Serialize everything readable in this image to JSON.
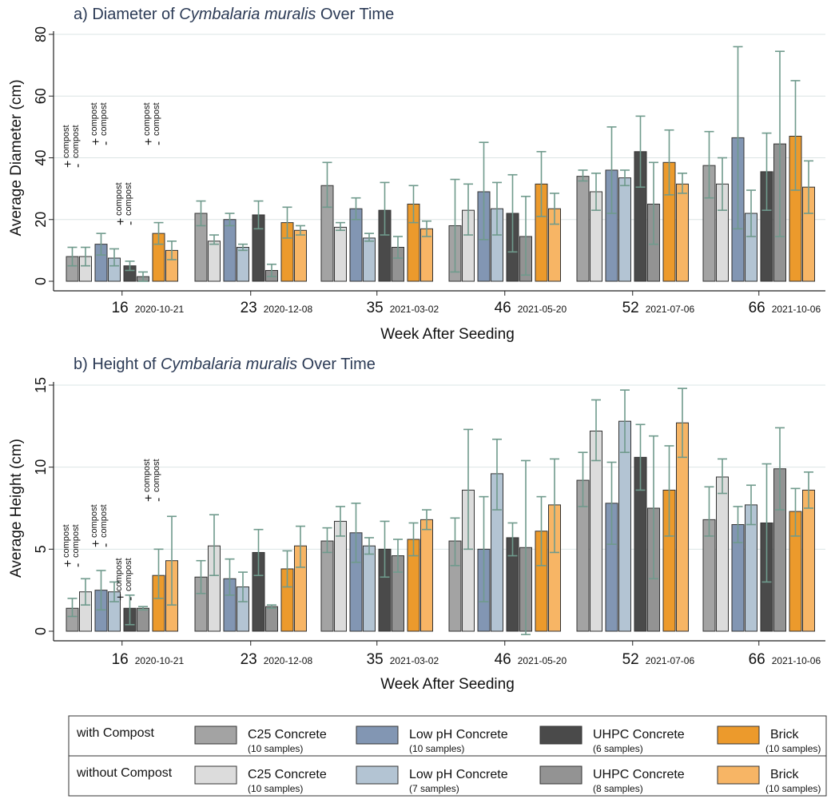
{
  "colors": {
    "c25_with": "#a3a3a3",
    "c25_without": "#dcdcdc",
    "lowph_with": "#8296b3",
    "lowph_without": "#b3c4d3",
    "uhpc_with": "#4a4a4a",
    "uhpc_without": "#939393",
    "brick_with": "#ec9a2c",
    "brick_without": "#f7b565",
    "errorbar": "#6f9a8c",
    "grid": "#dbe4e4"
  },
  "legend": {
    "rows": [
      {
        "label": "with Compost",
        "items": [
          {
            "key": "c25_with",
            "name": "C25 Concrete",
            "samples": "(10 samples)"
          },
          {
            "key": "lowph_with",
            "name": "Low pH Concrete",
            "samples": "(10 samples)"
          },
          {
            "key": "uhpc_with",
            "name": "UHPC Concrete",
            "samples": "(6 samples)"
          },
          {
            "key": "brick_with",
            "name": "Brick",
            "samples": "(10 samples)"
          }
        ]
      },
      {
        "label": "without Compost",
        "items": [
          {
            "key": "c25_without",
            "name": "C25 Concrete",
            "samples": "(10 samples)"
          },
          {
            "key": "lowph_without",
            "name": "Low pH Concrete",
            "samples": "(7 samples)"
          },
          {
            "key": "uhpc_without",
            "name": "UHPC Concrete",
            "samples": "(8 samples)"
          },
          {
            "key": "brick_without",
            "name": "Brick",
            "samples": "(10 samples)"
          }
        ]
      }
    ]
  },
  "annotation": {
    "plus_sign": "+",
    "minus_sign": "-",
    "compost_word": "compost"
  },
  "chart_data": [
    {
      "type": "bar",
      "title_prefix": "a) Diameter of ",
      "title_species": "Cymbalaria muralis",
      "title_suffix": " Over Time",
      "xlabel": "Week After Seeding",
      "ylabel": "Average Diameter (cm)",
      "ylim": [
        0,
        80
      ],
      "yticks": [
        0,
        20,
        40,
        60,
        80
      ],
      "grid": true,
      "categories": [
        {
          "week": "16",
          "date": "2020-10-21"
        },
        {
          "week": "23",
          "date": "2020-12-08"
        },
        {
          "week": "35",
          "date": "2021-03-02"
        },
        {
          "week": "46",
          "date": "2021-05-20"
        },
        {
          "week": "52",
          "date": "2021-07-06"
        },
        {
          "week": "66",
          "date": "2021-10-06"
        }
      ],
      "series": [
        {
          "key": "c25_with",
          "values": [
            8,
            22,
            31,
            18,
            34,
            37.5
          ],
          "err_low": [
            5,
            18,
            24,
            3,
            32.5,
            27
          ],
          "err_high": [
            11,
            26,
            38.5,
            33,
            36,
            48.5
          ]
        },
        {
          "key": "c25_without",
          "values": [
            8,
            13,
            17.5,
            23,
            29,
            31.5
          ],
          "err_low": [
            5,
            12,
            16.5,
            15,
            23,
            23
          ],
          "err_high": [
            11,
            15,
            19,
            31.5,
            35,
            40
          ]
        },
        {
          "key": "lowph_with",
          "values": [
            12,
            20,
            23.5,
            29,
            36,
            46.5
          ],
          "err_low": [
            8.5,
            18,
            20,
            13.5,
            22,
            17
          ],
          "err_high": [
            15.5,
            22,
            27,
            45,
            50,
            76
          ]
        },
        {
          "key": "lowph_without",
          "values": [
            7.5,
            11,
            14,
            23.5,
            33.5,
            22
          ],
          "err_low": [
            5,
            10,
            13,
            15,
            31,
            14.5
          ],
          "err_high": [
            10.5,
            12,
            15.5,
            32,
            36,
            29.5
          ]
        },
        {
          "key": "uhpc_with",
          "values": [
            5,
            21.5,
            23,
            22,
            42,
            35.5
          ],
          "err_low": [
            3.5,
            17,
            15,
            9.5,
            30.5,
            23
          ],
          "err_high": [
            6.5,
            26,
            32,
            34.5,
            53.5,
            48
          ]
        },
        {
          "key": "uhpc_without",
          "values": [
            1.5,
            3.5,
            11,
            14.5,
            25,
            44.5
          ],
          "err_low": [
            0,
            1.5,
            7.5,
            2,
            12,
            14.5
          ],
          "err_high": [
            3,
            5.5,
            14.5,
            27.5,
            38.5,
            74.5
          ]
        },
        {
          "key": "brick_with",
          "values": [
            15.5,
            19,
            25,
            31.5,
            38.5,
            47
          ],
          "err_low": [
            12,
            14,
            19,
            21,
            28,
            29.5
          ],
          "err_high": [
            19,
            24,
            31,
            42,
            49,
            65
          ]
        },
        {
          "key": "brick_without",
          "values": [
            10,
            16.5,
            17,
            23.5,
            31.5,
            30.5
          ],
          "err_low": [
            7,
            15,
            14.5,
            18.5,
            28.5,
            22
          ],
          "err_high": [
            13,
            18,
            19.5,
            28.5,
            35,
            39
          ]
        }
      ]
    },
    {
      "type": "bar",
      "title_prefix": "b) Height of ",
      "title_species": "Cymbalaria muralis",
      "title_suffix": " Over Time",
      "xlabel": "Week After Seeding",
      "ylabel": "Average Height (cm)",
      "ylim": [
        0,
        15
      ],
      "yticks": [
        0,
        5,
        10,
        15
      ],
      "grid": true,
      "categories": [
        {
          "week": "16",
          "date": "2020-10-21"
        },
        {
          "week": "23",
          "date": "2020-12-08"
        },
        {
          "week": "35",
          "date": "2021-03-02"
        },
        {
          "week": "46",
          "date": "2021-05-20"
        },
        {
          "week": "52",
          "date": "2021-07-06"
        },
        {
          "week": "66",
          "date": "2021-10-06"
        }
      ],
      "series": [
        {
          "key": "c25_with",
          "values": [
            1.4,
            3.3,
            5.5,
            5.5,
            9.2,
            6.8
          ],
          "err_low": [
            0.9,
            2.3,
            4.8,
            4.0,
            7.6,
            5.8
          ],
          "err_high": [
            2.0,
            4.3,
            6.3,
            6.9,
            10.9,
            8.8
          ]
        },
        {
          "key": "c25_without",
          "values": [
            2.4,
            5.2,
            6.7,
            8.6,
            12.2,
            9.4
          ],
          "err_low": [
            1.6,
            3.4,
            5.8,
            5.0,
            10.4,
            8.4
          ],
          "err_high": [
            3.2,
            7.1,
            7.6,
            12.3,
            14.1,
            10.5
          ]
        },
        {
          "key": "lowph_with",
          "values": [
            2.5,
            3.2,
            6.0,
            5.0,
            7.8,
            6.5
          ],
          "err_low": [
            1.3,
            2.2,
            4.2,
            1.8,
            5.3,
            5.4
          ],
          "err_high": [
            3.7,
            4.4,
            7.8,
            8.2,
            10.3,
            7.6
          ]
        },
        {
          "key": "lowph_without",
          "values": [
            2.4,
            2.7,
            5.2,
            9.6,
            12.8,
            7.7
          ],
          "err_low": [
            1.8,
            1.8,
            4.7,
            7.4,
            10.9,
            6.5
          ],
          "err_high": [
            3.0,
            3.6,
            5.7,
            11.7,
            14.7,
            8.9
          ]
        },
        {
          "key": "uhpc_with",
          "values": [
            1.4,
            4.8,
            5.0,
            5.7,
            10.6,
            6.6
          ],
          "err_low": [
            0.4,
            3.4,
            3.3,
            4.6,
            8.6,
            3.0
          ],
          "err_high": [
            2.2,
            6.2,
            6.7,
            6.6,
            12.6,
            10.2
          ]
        },
        {
          "key": "uhpc_without",
          "values": [
            1.4,
            1.5,
            4.6,
            5.1,
            7.5,
            9.9
          ],
          "err_low": [
            1.3,
            1.4,
            3.6,
            -0.2,
            3.2,
            7.4
          ],
          "err_high": [
            1.5,
            1.6,
            5.6,
            10.4,
            11.9,
            12.4
          ]
        },
        {
          "key": "brick_with",
          "values": [
            3.4,
            3.8,
            5.6,
            6.1,
            8.6,
            7.3
          ],
          "err_low": [
            2.0,
            2.7,
            4.6,
            4.0,
            5.8,
            5.8
          ],
          "err_high": [
            5.0,
            4.9,
            6.6,
            8.2,
            11.3,
            8.7
          ]
        },
        {
          "key": "brick_without",
          "values": [
            4.3,
            5.2,
            6.8,
            7.7,
            12.7,
            8.6
          ],
          "err_low": [
            1.6,
            3.9,
            6.2,
            4.8,
            10.6,
            7.5
          ],
          "err_high": [
            7.0,
            6.4,
            7.4,
            10.5,
            14.8,
            9.7
          ]
        }
      ]
    }
  ]
}
